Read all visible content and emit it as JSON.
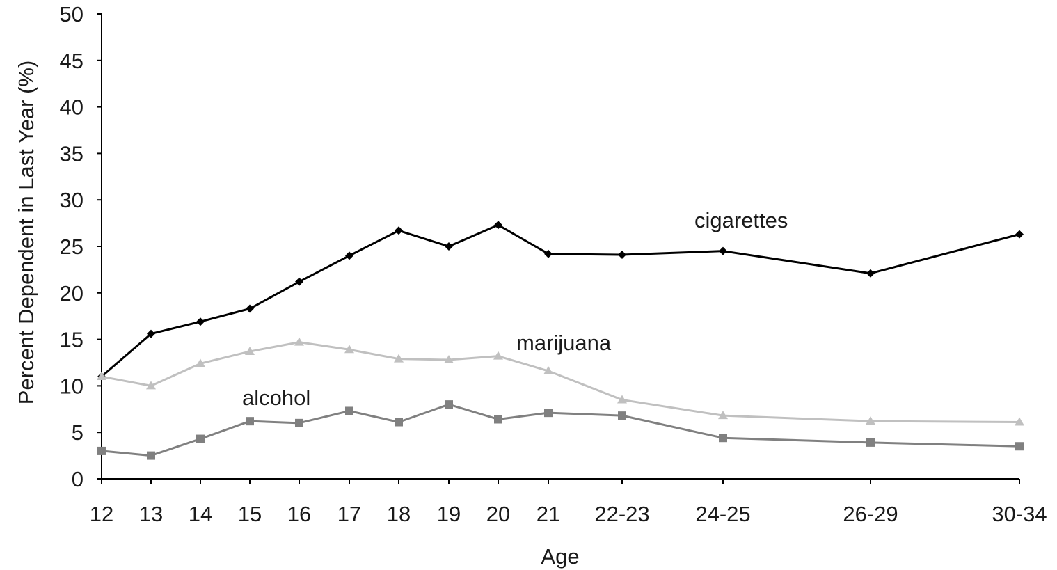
{
  "chart_data": {
    "type": "line",
    "xlabel": "Age",
    "ylabel": "Percent Dependent in Last Year (%)",
    "ylim": [
      0,
      50
    ],
    "yticks": [
      0,
      5,
      10,
      15,
      20,
      25,
      30,
      35,
      40,
      45,
      50
    ],
    "categories": [
      "12",
      "13",
      "14",
      "15",
      "16",
      "17",
      "18",
      "19",
      "20",
      "21",
      "22-23",
      "24-25",
      "26-29",
      "30-34"
    ],
    "grid": false,
    "series": [
      {
        "name": "cigarettes",
        "color": "#000000",
        "marker": "diamond",
        "values": [
          11.0,
          15.6,
          16.9,
          18.3,
          21.2,
          24.0,
          26.7,
          25.0,
          27.3,
          24.2,
          24.1,
          24.5,
          22.1,
          26.3
        ]
      },
      {
        "name": "marijuana",
        "color": "#c0c0c0",
        "marker": "triangle",
        "values": [
          11.0,
          10.0,
          12.4,
          13.7,
          14.7,
          13.9,
          12.9,
          12.8,
          13.2,
          11.6,
          8.5,
          6.8,
          6.2,
          6.1
        ]
      },
      {
        "name": "alcohol",
        "color": "#808080",
        "marker": "square",
        "values": [
          3.0,
          2.5,
          4.3,
          6.2,
          6.0,
          7.3,
          6.1,
          8.0,
          6.4,
          7.1,
          6.8,
          4.4,
          3.9,
          3.5
        ]
      }
    ]
  }
}
